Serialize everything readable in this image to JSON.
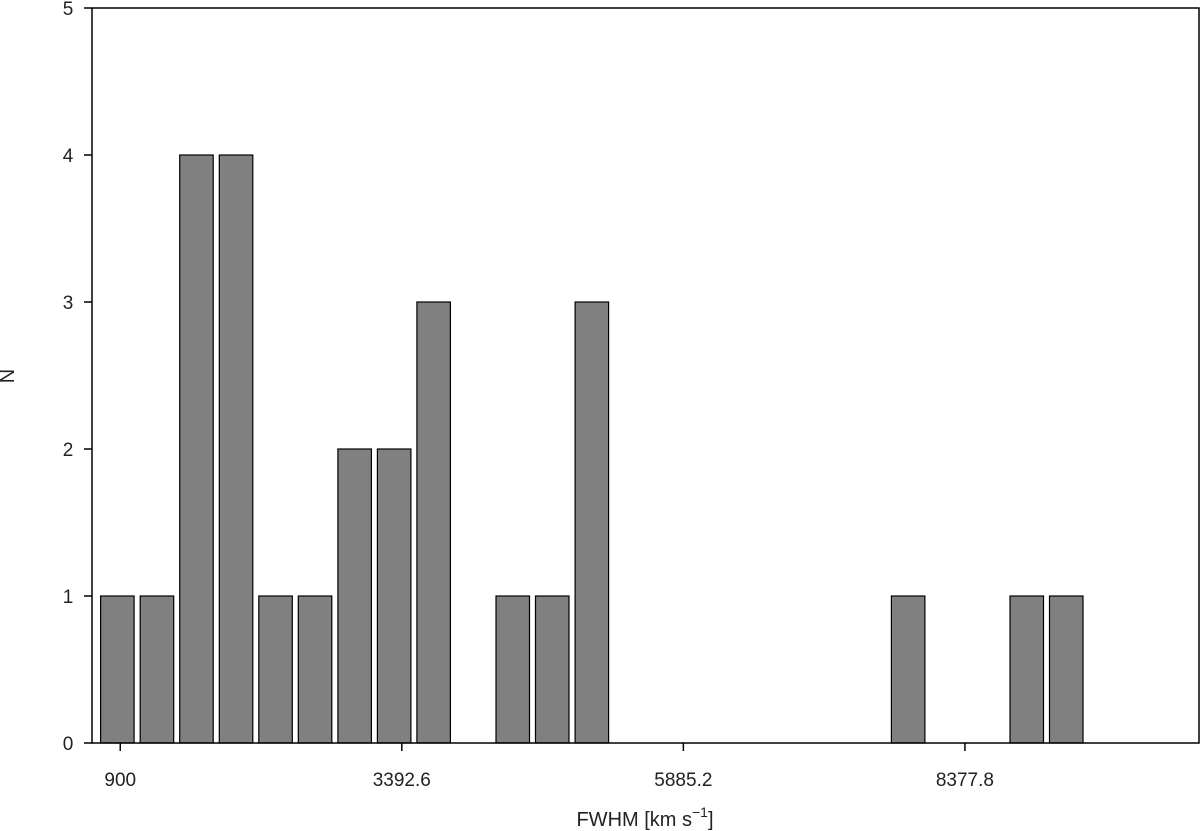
{
  "chart_data": {
    "type": "bar",
    "xlabel": "FWHM [km s",
    "xlabel_sup": "−1",
    "xlabel_end": "]",
    "ylabel": "N",
    "ylim": [
      0,
      5
    ],
    "yticks": [
      0,
      1,
      2,
      3,
      4,
      5
    ],
    "xticks": [
      900,
      3392.6,
      5885.2,
      8377.8
    ],
    "xtick_labels": [
      "900",
      "3392.6",
      "5885.2",
      "8377.8"
    ],
    "xlim": [
      650,
      10450
    ],
    "bins": [
      {
        "x0": 700,
        "x1": 1050,
        "value": 1
      },
      {
        "x0": 1050,
        "x1": 1400,
        "value": 1
      },
      {
        "x0": 1400,
        "x1": 1750,
        "value": 4
      },
      {
        "x0": 1750,
        "x1": 2100,
        "value": 4
      },
      {
        "x0": 2100,
        "x1": 2450,
        "value": 1
      },
      {
        "x0": 2450,
        "x1": 2800,
        "value": 1
      },
      {
        "x0": 2800,
        "x1": 3150,
        "value": 2
      },
      {
        "x0": 3150,
        "x1": 3500,
        "value": 2
      },
      {
        "x0": 3500,
        "x1": 3850,
        "value": 3
      },
      {
        "x0": 4200,
        "x1": 4550,
        "value": 1
      },
      {
        "x0": 4550,
        "x1": 4900,
        "value": 1
      },
      {
        "x0": 4900,
        "x1": 5250,
        "value": 3
      },
      {
        "x0": 7700,
        "x1": 8050,
        "value": 1
      },
      {
        "x0": 8750,
        "x1": 9100,
        "value": 1
      },
      {
        "x0": 9100,
        "x1": 9450,
        "value": 1
      }
    ],
    "bar_color": "#808080",
    "edge_color": "#000000"
  }
}
